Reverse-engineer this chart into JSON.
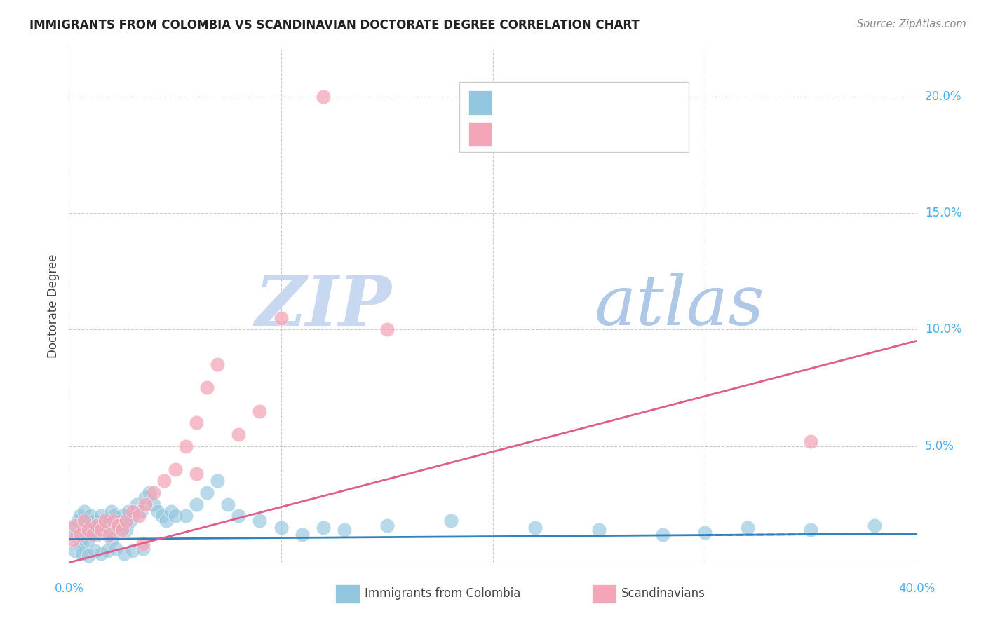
{
  "title": "IMMIGRANTS FROM COLOMBIA VS SCANDINAVIAN DOCTORATE DEGREE CORRELATION CHART",
  "source": "Source: ZipAtlas.com",
  "ylabel": "Doctorate Degree",
  "color_blue": "#92c5de",
  "color_pink": "#f4a6b8",
  "color_blue_line": "#3182bd",
  "color_pink_line": "#e05c8a",
  "color_blue_text": "#4daff0",
  "color_pink_text": "#e05c8a",
  "watermark_zip_color": "#c8d8ee",
  "watermark_atlas_color": "#b8cce4",
  "grid_color": "#cccccc",
  "xlim": [
    0.0,
    0.4
  ],
  "ylim": [
    0.0,
    0.22
  ],
  "blue_line_intercept": 0.01,
  "blue_line_slope": 0.006,
  "pink_line_intercept": 0.0,
  "pink_line_slope": 0.238,
  "blue_points_x": [
    0.002,
    0.003,
    0.004,
    0.005,
    0.005,
    0.006,
    0.007,
    0.007,
    0.008,
    0.008,
    0.009,
    0.01,
    0.01,
    0.011,
    0.012,
    0.013,
    0.014,
    0.015,
    0.015,
    0.016,
    0.017,
    0.018,
    0.019,
    0.02,
    0.02,
    0.021,
    0.022,
    0.023,
    0.024,
    0.025,
    0.026,
    0.027,
    0.028,
    0.029,
    0.03,
    0.032,
    0.034,
    0.036,
    0.038,
    0.04,
    0.042,
    0.044,
    0.046,
    0.048,
    0.05,
    0.055,
    0.06,
    0.065,
    0.07,
    0.075,
    0.08,
    0.09,
    0.1,
    0.11,
    0.12,
    0.13,
    0.15,
    0.18,
    0.22,
    0.25,
    0.28,
    0.3,
    0.32,
    0.35,
    0.38,
    0.003,
    0.006,
    0.009,
    0.012,
    0.015,
    0.018,
    0.022,
    0.026,
    0.03,
    0.035
  ],
  "blue_points_y": [
    0.015,
    0.012,
    0.018,
    0.01,
    0.02,
    0.008,
    0.015,
    0.022,
    0.012,
    0.018,
    0.01,
    0.016,
    0.02,
    0.014,
    0.018,
    0.012,
    0.016,
    0.014,
    0.02,
    0.018,
    0.016,
    0.012,
    0.018,
    0.022,
    0.01,
    0.02,
    0.016,
    0.014,
    0.018,
    0.02,
    0.016,
    0.014,
    0.022,
    0.018,
    0.02,
    0.025,
    0.022,
    0.028,
    0.03,
    0.025,
    0.022,
    0.02,
    0.018,
    0.022,
    0.02,
    0.02,
    0.025,
    0.03,
    0.035,
    0.025,
    0.02,
    0.018,
    0.015,
    0.012,
    0.015,
    0.014,
    0.016,
    0.018,
    0.015,
    0.014,
    0.012,
    0.013,
    0.015,
    0.014,
    0.016,
    0.005,
    0.004,
    0.003,
    0.005,
    0.004,
    0.005,
    0.006,
    0.004,
    0.005,
    0.006
  ],
  "pink_points_x": [
    0.002,
    0.003,
    0.005,
    0.007,
    0.009,
    0.011,
    0.013,
    0.015,
    0.017,
    0.019,
    0.021,
    0.023,
    0.025,
    0.027,
    0.03,
    0.033,
    0.036,
    0.04,
    0.045,
    0.05,
    0.055,
    0.06,
    0.065,
    0.07,
    0.08,
    0.09,
    0.1,
    0.12,
    0.15,
    0.35,
    0.06,
    0.035
  ],
  "pink_points_y": [
    0.01,
    0.016,
    0.012,
    0.018,
    0.014,
    0.012,
    0.016,
    0.014,
    0.018,
    0.012,
    0.018,
    0.016,
    0.014,
    0.018,
    0.022,
    0.02,
    0.025,
    0.03,
    0.035,
    0.04,
    0.05,
    0.06,
    0.075,
    0.085,
    0.055,
    0.065,
    0.105,
    0.2,
    0.1,
    0.052,
    0.038,
    0.008
  ]
}
